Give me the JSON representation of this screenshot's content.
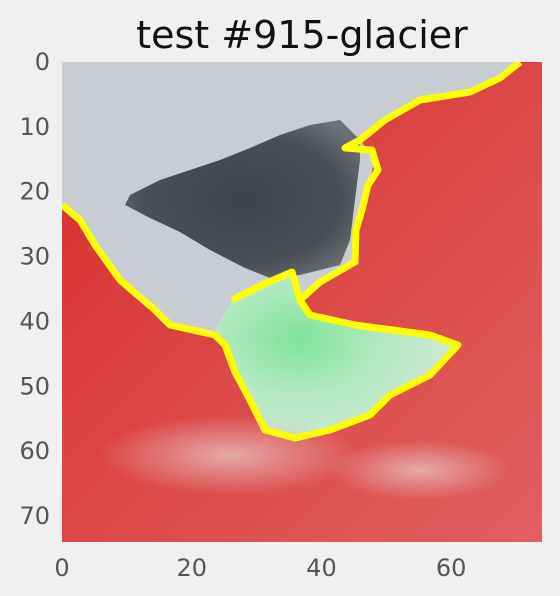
{
  "chart_data": {
    "type": "heatmap",
    "title": "test #915-glacier",
    "xlabel": "",
    "ylabel": "",
    "x_ticks": [
      "0",
      "20",
      "40",
      "60"
    ],
    "y_ticks": [
      "0",
      "10",
      "20",
      "30",
      "40",
      "50",
      "60",
      "70"
    ],
    "xlim": [
      0,
      74
    ],
    "ylim": [
      74,
      0
    ],
    "grid": false,
    "regions": [
      {
        "label": "sky",
        "color": "#c8cdd4"
      },
      {
        "label": "dark rock",
        "color": "#4a4e55"
      },
      {
        "label": "terrain",
        "color": "#d92b2b"
      },
      {
        "label": "glacier mask",
        "color": "#c9ecd0"
      },
      {
        "label": "boundary",
        "color": "#ffff00"
      }
    ],
    "outline_color": "#ffff00",
    "glacier_color": "#33dd55",
    "terrain_color": "#d92b2b"
  }
}
